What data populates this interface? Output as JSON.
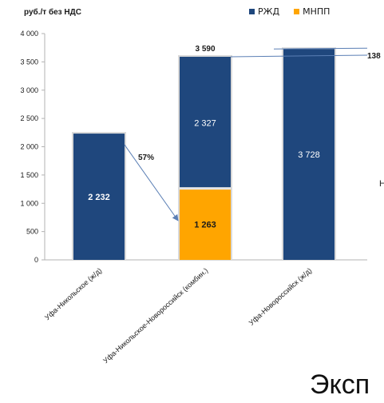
{
  "chart_data": {
    "type": "bar",
    "stacked": true,
    "ylabel": "руб./т без НДС",
    "ylim": [
      0,
      4000
    ],
    "yticks": [
      0,
      500,
      1000,
      1500,
      2000,
      2500,
      3000,
      3500,
      4000
    ],
    "ytick_labels": [
      "0",
      "500",
      "1 000",
      "1 500",
      "2 000",
      "2 500",
      "3 000",
      "3 500",
      "4 000"
    ],
    "categories": [
      "Уфа-Никольское (ж/д)",
      "Уфа-Никольское-Новороссийск (комбин.)",
      "Уфа-Новороссийск (ж/д)"
    ],
    "series": [
      {
        "name": "РЖД",
        "color": "#1f477d",
        "values": [
          2232,
          2327,
          3728
        ],
        "labels": [
          "2 232",
          "2 327",
          "3 728"
        ]
      },
      {
        "name": "МНПП",
        "color": "#ffa500",
        "values": [
          0,
          1263,
          0
        ],
        "labels": [
          "",
          "1 263",
          ""
        ]
      }
    ],
    "stack_order": [
      "МНПП",
      "РЖД"
    ],
    "totals": {
      "value": 3590,
      "label": "3 590"
    },
    "annotations": [
      {
        "text": "57%",
        "type": "arrow"
      },
      {
        "text": "138",
        "type": "difference"
      }
    ],
    "legend_position": "top-right",
    "grid": false
  },
  "overlay": {
    "bottom_text": "Эксп",
    "edge_letter": "Н"
  }
}
